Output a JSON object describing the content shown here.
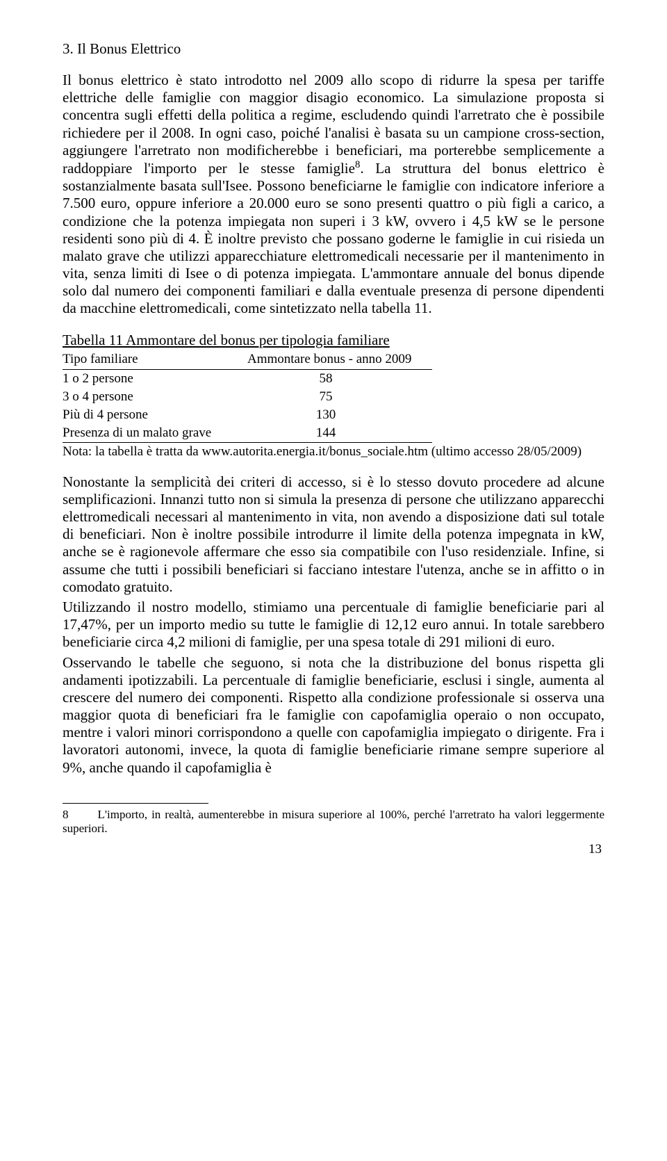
{
  "heading": "3. Il Bonus Elettrico",
  "para1": "Il bonus elettrico è stato introdotto nel 2009 allo scopo di ridurre la spesa per tariffe elettriche delle famiglie con maggior disagio economico. La simulazione proposta si concentra sugli effetti della politica a regime, escludendo quindi l'arretrato che è possibile richiedere per il 2008. In ogni caso, poiché l'analisi è basata su un campione cross-section, aggiungere l'arretrato non modificherebbe i beneficiari, ma porterebbe semplicemente a raddoppiare l'importo per le stesse famiglie",
  "sup1": "8",
  "para1b": ".",
  "para2": "La struttura del bonus elettrico è sostanzialmente basata sull'Isee. Possono beneficiarne le famiglie con indicatore inferiore a 7.500 euro, oppure inferiore a 20.000 euro se sono presenti quattro o più figli a carico, a condizione che la potenza impiegata non superi i 3 kW, ovvero i 4,5 kW se le persone residenti sono più di 4. È inoltre previsto che possano goderne le famiglie in cui risieda un malato grave che utilizzi apparecchiature elettromedicali necessarie per il mantenimento in vita, senza limiti di Isee o di potenza impiegata. L'ammontare annuale del bonus dipende solo dal numero dei componenti familiari e dalla eventuale presenza di persone dipendenti da macchine elettromedicali, come sintetizzato nella tabella 11.",
  "table": {
    "title": "Tabella 11 Ammontare del bonus per tipologia familiare",
    "col_tipo": "Tipo familiare",
    "col_amm": "Ammontare bonus - anno 2009",
    "rows": [
      {
        "tipo": "1 o 2 persone",
        "val": "58"
      },
      {
        "tipo": "3 o 4 persone",
        "val": "75"
      },
      {
        "tipo": "Più di 4 persone",
        "val": "130"
      },
      {
        "tipo": "Presenza di un malato grave",
        "val": "144"
      }
    ],
    "note": "Nota: la tabella è tratta da www.autorita.energia.it/bonus_sociale.htm (ultimo accesso 28/05/2009)"
  },
  "para3": "Nonostante la semplicità dei criteri di accesso, si è lo stesso dovuto procedere ad alcune semplificazioni. Innanzi tutto non si simula la presenza di persone che utilizzano apparecchi elettromedicali necessari al mantenimento in vita, non avendo a disposizione dati sul totale di beneficiari. Non è inoltre possibile introdurre il limite della potenza impegnata in kW, anche se è ragionevole affermare che esso sia compatibile con l'uso residenziale. Infine, si assume che tutti i possibili beneficiari si facciano intestare l'utenza, anche se in affitto o in comodato gratuito.",
  "para4": "Utilizzando il nostro modello, stimiamo una percentuale di famiglie beneficiarie pari al 17,47%, per un importo medio su tutte le famiglie di 12,12 euro annui. In totale sarebbero beneficiarie circa 4,2 milioni di famiglie, per una spesa totale di 291 milioni di euro.",
  "para5": "Osservando le tabelle che seguono, si nota che la distribuzione del bonus rispetta gli andamenti ipotizzabili. La percentuale di famiglie beneficiarie, esclusi i single, aumenta al crescere del numero dei componenti. Rispetto alla condizione professionale si osserva una maggior quota di beneficiari fra le famiglie con capofamiglia operaio o non occupato, mentre i valori minori corrispondono a quelle con capofamiglia impiegato o dirigente. Fra i lavoratori autonomi, invece, la quota di famiglie beneficiarie rimane sempre superiore al 9%, anche quando il capofamiglia è",
  "footnote_num": "8",
  "footnote": "L'importo, in realtà, aumenterebbe in misura superiore al 100%, perché l'arretrato ha valori leggermente superiori.",
  "page_number": "13"
}
